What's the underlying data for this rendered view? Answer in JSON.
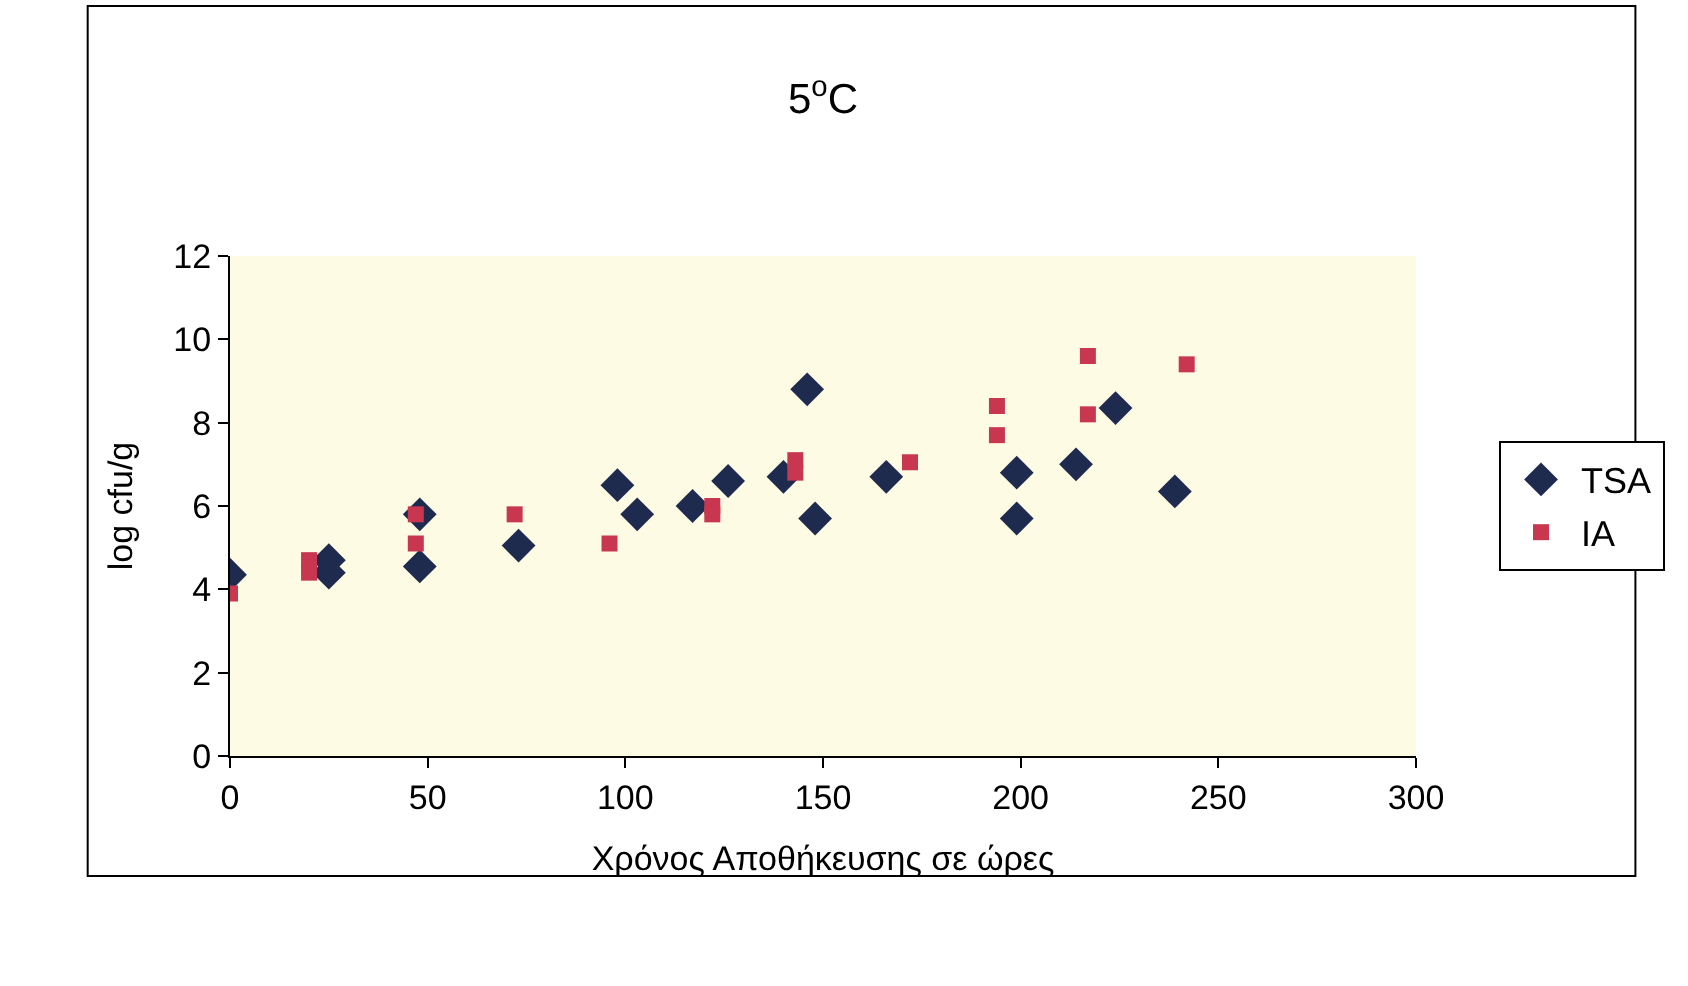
{
  "chart_data": {
    "type": "scatter",
    "title": "5$^{o}$C",
    "xlabel": "Χρόνος Αποθήκευσης σε ώρες",
    "ylabel": "log cfu/g",
    "xlim": [
      0,
      300
    ],
    "xticks": [
      0,
      50,
      100,
      150,
      200,
      250,
      300
    ],
    "ylim": [
      0,
      12
    ],
    "yticks": [
      0,
      2,
      4,
      6,
      8,
      10,
      12
    ],
    "grid": false,
    "legend": "right",
    "series": [
      {
        "name": "TSA",
        "color": "#1f2a4f",
        "marker": "diamond",
        "x": [
          0,
          25,
          25,
          48,
          48,
          73,
          98,
          103,
          117,
          126,
          140,
          146,
          148,
          166,
          199,
          199,
          214,
          224,
          239
        ],
        "values": [
          4.35,
          4.7,
          4.4,
          5.8,
          4.55,
          5.05,
          6.5,
          5.8,
          6.0,
          6.6,
          6.7,
          8.8,
          5.7,
          6.7,
          6.8,
          5.7,
          7.0,
          8.35,
          6.35
        ]
      },
      {
        "name": "IA",
        "color": "#c8374f",
        "marker": "square",
        "x": [
          0,
          20,
          20,
          47,
          47,
          72,
          96,
          122,
          122,
          143,
          143,
          172,
          194,
          194,
          217,
          217,
          242
        ],
        "values": [
          3.9,
          4.7,
          4.4,
          5.8,
          5.1,
          5.8,
          5.1,
          6.0,
          5.8,
          7.1,
          6.8,
          7.05,
          8.4,
          7.7,
          9.6,
          8.2,
          9.4
        ]
      }
    ]
  }
}
